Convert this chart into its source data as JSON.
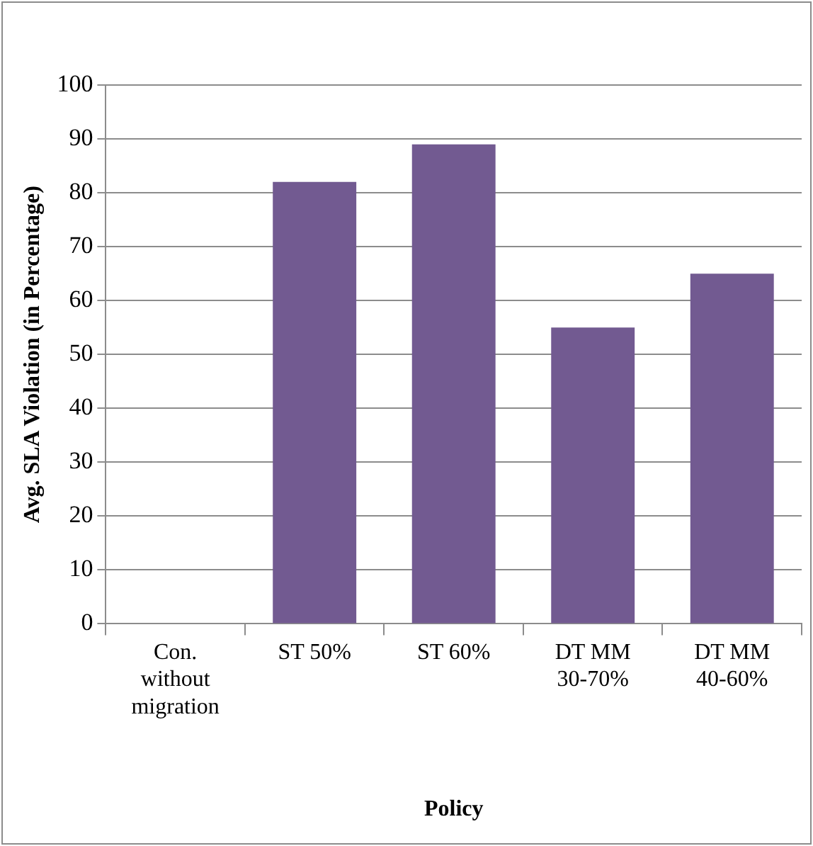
{
  "chart_data": {
    "type": "bar",
    "xlabel": "Policy",
    "ylabel": "Avg. SLA Violation (in Percentage)",
    "categories": [
      "Con. without migration",
      "ST 50%",
      "ST 60%",
      "DT MM 30-70%",
      "DT MM 40-60%"
    ],
    "values": [
      0,
      82,
      89,
      55,
      65
    ],
    "color": "#725a91",
    "ylim": [
      0,
      100
    ],
    "yticks": [
      0,
      10,
      20,
      30,
      40,
      50,
      60,
      70,
      80,
      90,
      100
    ],
    "grid": "y",
    "legend": false
  }
}
